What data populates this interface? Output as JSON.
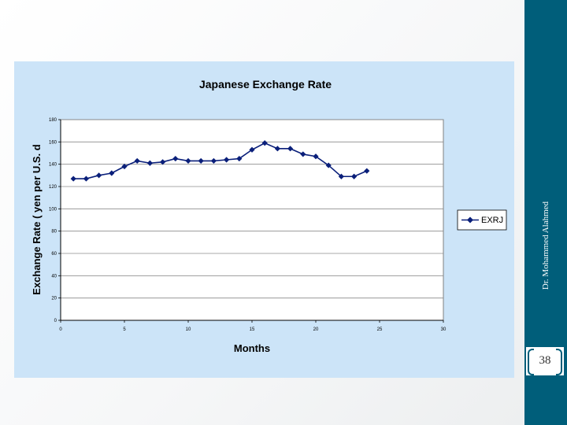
{
  "slide": {
    "author": "Dr. Mohammed Alahmed",
    "page_number": "38"
  },
  "colors": {
    "sidebar": "#005e7a",
    "panel_background": "#cce4f8",
    "series": "#0a1f7a"
  },
  "chart_data": {
    "type": "line",
    "title": "Japanese Exchange Rate",
    "xlabel": "Months",
    "ylabel": "Exchange Rate ( yen per U.S. d",
    "xlim": [
      0,
      30
    ],
    "ylim": [
      0,
      180
    ],
    "x_ticks": [
      0,
      5,
      10,
      15,
      20,
      25,
      30
    ],
    "y_ticks": [
      0,
      20,
      40,
      60,
      80,
      100,
      120,
      140,
      160,
      180
    ],
    "grid": "horizontal",
    "legend_position": "right",
    "series": [
      {
        "name": "EXRJ",
        "marker": "diamond",
        "x": [
          1,
          2,
          3,
          4,
          5,
          6,
          7,
          8,
          9,
          10,
          11,
          12,
          13,
          14,
          15,
          16,
          17,
          18,
          19,
          20,
          21,
          22,
          23,
          24
        ],
        "y": [
          127,
          127,
          130,
          132,
          138,
          143,
          141,
          142,
          145,
          143,
          143,
          143,
          144,
          145,
          153,
          159,
          154,
          154,
          149,
          147,
          139,
          129,
          129,
          134
        ]
      }
    ]
  }
}
